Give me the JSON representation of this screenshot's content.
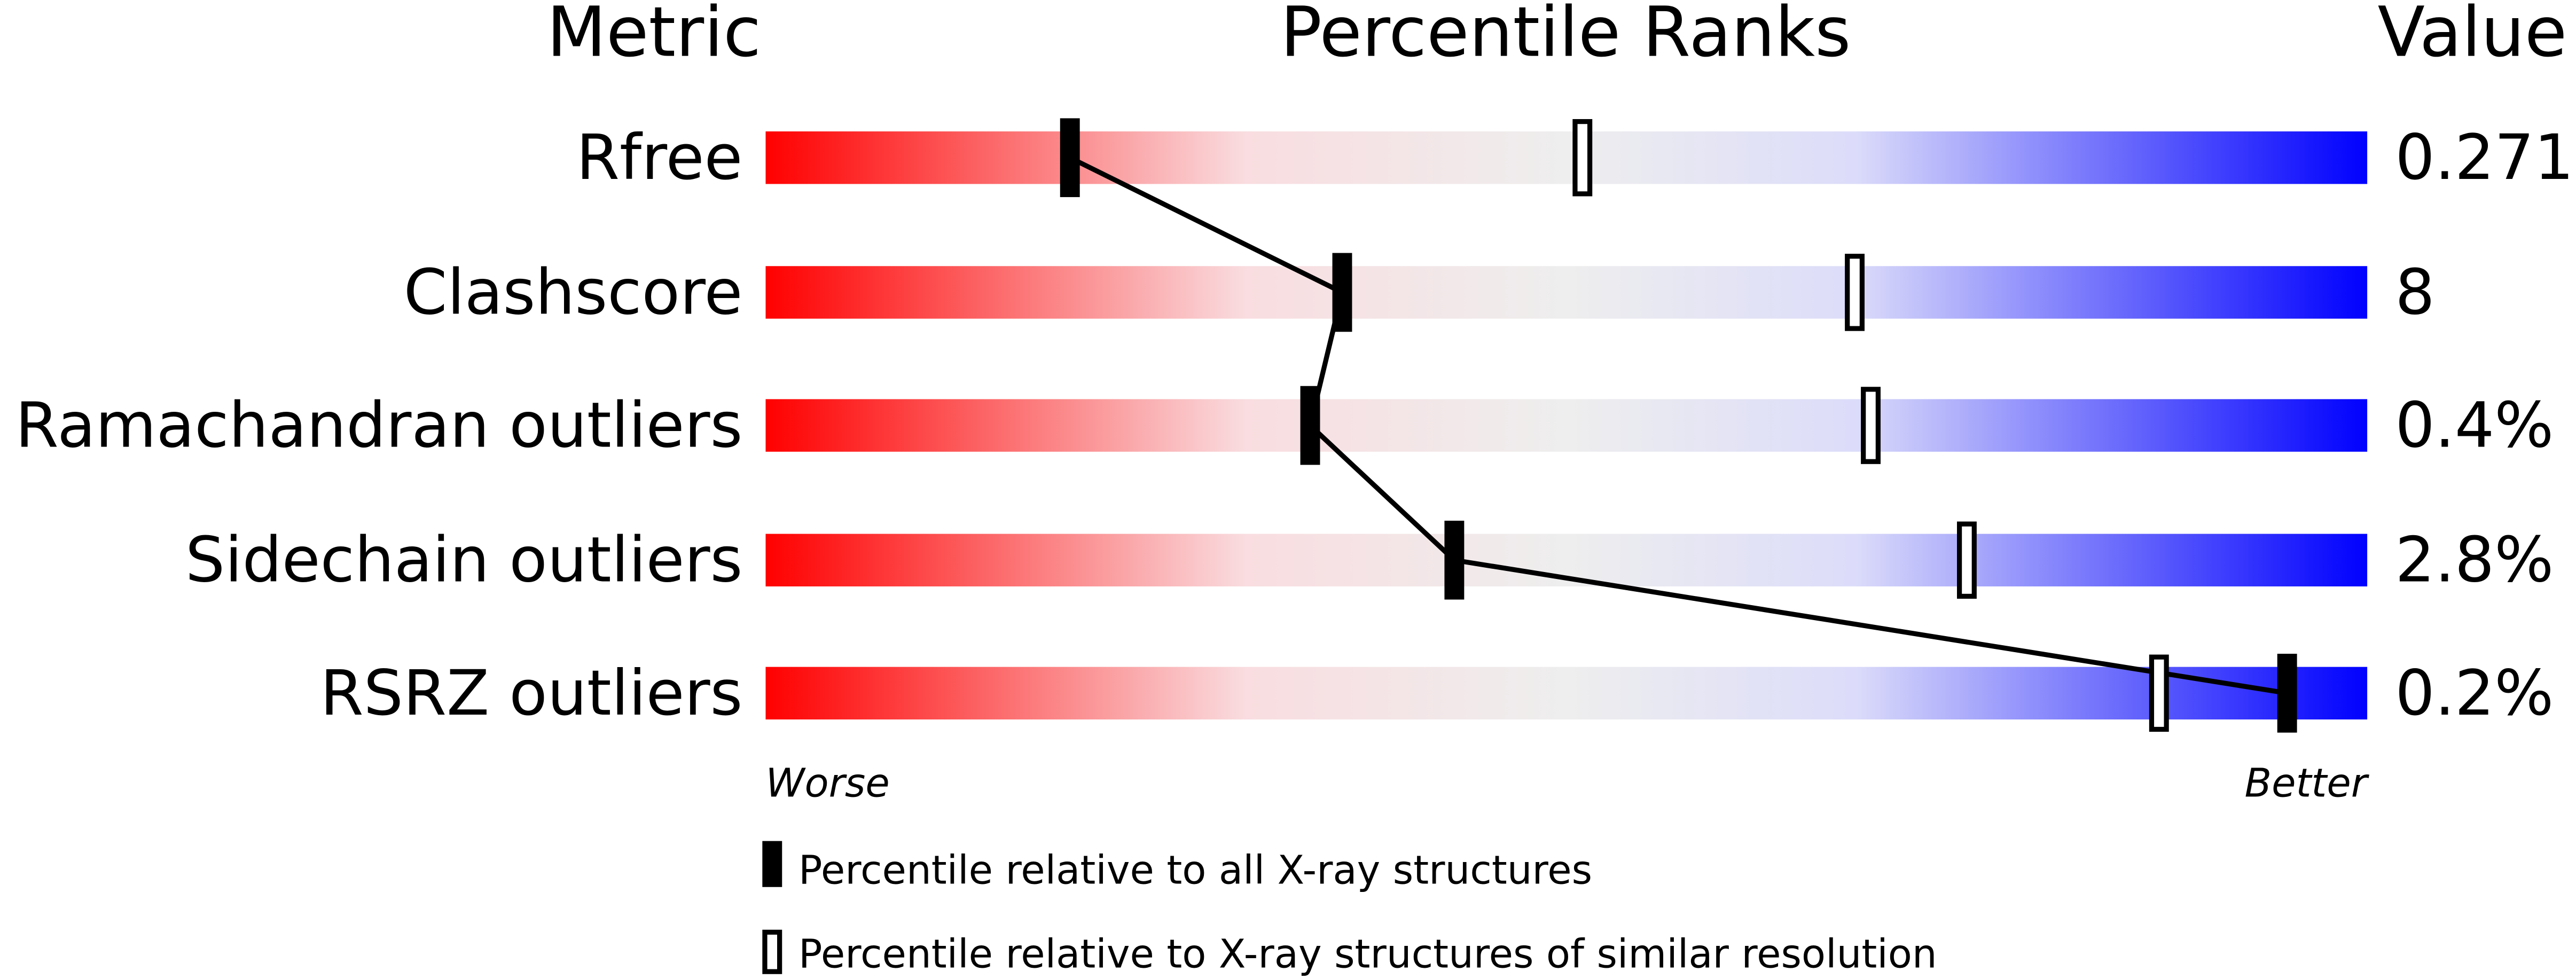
{
  "chart_data": {
    "type": "percentile-bar",
    "headers": {
      "metric": "Metric",
      "ranks": "Percentile Ranks",
      "value": "Value"
    },
    "xlim": [
      0,
      100
    ],
    "axis_ends": {
      "left": "Worse",
      "right": "Better"
    },
    "gradient_colors": [
      "#ff0000",
      "#f9dde0",
      "#eeeeee",
      "#dcdcfa",
      "#0000ff"
    ],
    "metrics": [
      {
        "name": "Rfree",
        "value": "0.271",
        "percentile_all": 19,
        "percentile_similar": 51
      },
      {
        "name": "Clashscore",
        "value": "8",
        "percentile_all": 36,
        "percentile_similar": 68
      },
      {
        "name": "Ramachandran outliers",
        "value": "0.4%",
        "percentile_all": 34,
        "percentile_similar": 69
      },
      {
        "name": "Sidechain outliers",
        "value": "2.8%",
        "percentile_all": 43,
        "percentile_similar": 75
      },
      {
        "name": "RSRZ outliers",
        "value": "0.2%",
        "percentile_all": 95,
        "percentile_similar": 87
      }
    ],
    "legend": [
      {
        "marker": "filled",
        "label": "Percentile relative to all X-ray structures"
      },
      {
        "marker": "open",
        "label": "Percentile relative to X-ray structures of similar resolution"
      }
    ]
  }
}
